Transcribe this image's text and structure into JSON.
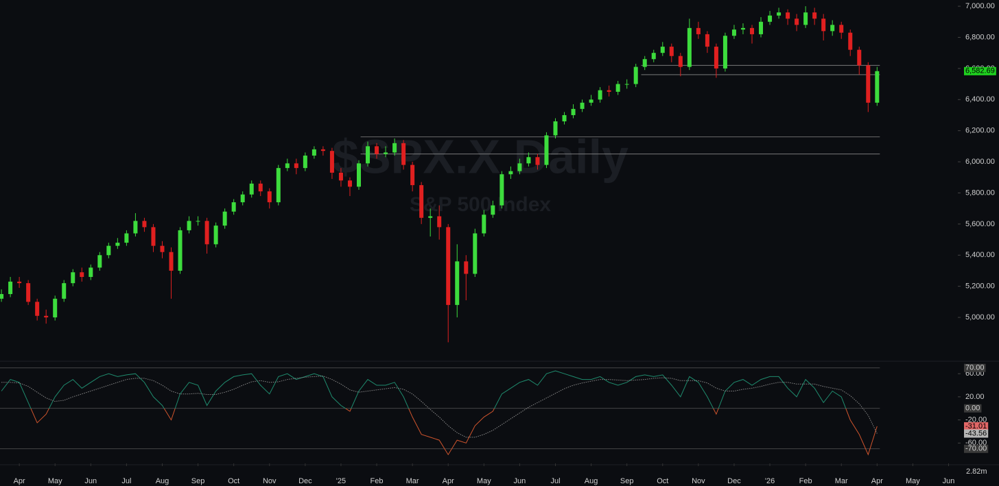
{
  "chart_data": [
    {
      "type": "candlestick",
      "title": "$SPX.X Daily",
      "subtitle": "S&P 500 Index",
      "up_color": "#3ddc3d",
      "down_color": "#e02020",
      "x": [
        -0.5,
        -0.25,
        0,
        0.25,
        0.5,
        0.75,
        1,
        1.25,
        1.5,
        1.75,
        2,
        2.25,
        2.5,
        2.75,
        3,
        3.25,
        3.5,
        3.75,
        4,
        4.25,
        4.5,
        4.75,
        5,
        5.25,
        5.5,
        5.75,
        6,
        6.25,
        6.5,
        6.75,
        7,
        7.25,
        7.5,
        7.75,
        8,
        8.25,
        8.5,
        8.75,
        9,
        9.25,
        9.5,
        9.75,
        10,
        10.25,
        10.5,
        10.75,
        11,
        11.25,
        11.5,
        11.75,
        12,
        12.25,
        12.5,
        12.75,
        13,
        13.25,
        13.5,
        13.75,
        14,
        14.25,
        14.5,
        14.75,
        15,
        15.25,
        15.5,
        15.75,
        16,
        16.25,
        16.5,
        16.75,
        17,
        17.25,
        17.5,
        17.75,
        18,
        18.25,
        18.5,
        18.75,
        19,
        19.25,
        19.5,
        19.75,
        20,
        20.25,
        20.5,
        20.75,
        21,
        21.25,
        21.5,
        21.75,
        22,
        22.25,
        22.5,
        22.75,
        23,
        23.25,
        23.5,
        23.75,
        24
      ],
      "open": [
        5120,
        5150,
        5230,
        5220,
        5100,
        5010,
        5000,
        5120,
        5220,
        5290,
        5260,
        5320,
        5400,
        5460,
        5480,
        5540,
        5620,
        5580,
        5460,
        5420,
        5300,
        5560,
        5620,
        5620,
        5470,
        5590,
        5680,
        5740,
        5790,
        5860,
        5810,
        5740,
        5960,
        5990,
        5960,
        6040,
        6080,
        6070,
        5930,
        5880,
        5840,
        5990,
        6100,
        6050,
        6060,
        6120,
        5980,
        5850,
        5640,
        5650,
        5580,
        5080,
        5360,
        5280,
        5540,
        5660,
        5720,
        5920,
        5940,
        5990,
        6030,
        5980,
        6170,
        6260,
        6300,
        6340,
        6380,
        6400,
        6460,
        6450,
        6500,
        6500,
        6610,
        6660,
        6700,
        6740,
        6680,
        6610,
        6860,
        6820,
        6740,
        6600,
        6810,
        6850,
        6860,
        6820,
        6900,
        6940,
        6960,
        6920,
        6880,
        6960,
        6920,
        6840,
        6880,
        6830,
        6720,
        6620,
        6380
      ],
      "high": [
        5180,
        5260,
        5260,
        5240,
        5120,
        5050,
        5140,
        5240,
        5310,
        5320,
        5340,
        5420,
        5480,
        5510,
        5560,
        5670,
        5640,
        5600,
        5490,
        5450,
        5580,
        5650,
        5650,
        5640,
        5610,
        5700,
        5760,
        5810,
        5880,
        5880,
        5830,
        5980,
        6020,
        6020,
        6060,
        6100,
        6100,
        6090,
        5960,
        5900,
        6010,
        6130,
        6120,
        6100,
        6150,
        6140,
        6000,
        5870,
        5700,
        5720,
        5600,
        5470,
        5400,
        5570,
        5690,
        5750,
        5940,
        5970,
        6020,
        6060,
        6050,
        6190,
        6280,
        6320,
        6370,
        6400,
        6430,
        6480,
        6490,
        6520,
        6530,
        6630,
        6680,
        6720,
        6770,
        6760,
        6700,
        6920,
        6900,
        6840,
        6760,
        6830,
        6880,
        6890,
        6880,
        6930,
        6970,
        6990,
        6980,
        6950,
        7000,
        6990,
        6950,
        6910,
        6900,
        6850,
        6740,
        6640,
        6610
      ],
      "low": [
        5100,
        5130,
        5190,
        5080,
        4980,
        4960,
        4980,
        5100,
        5200,
        5230,
        5240,
        5300,
        5380,
        5440,
        5460,
        5520,
        5550,
        5420,
        5380,
        5120,
        5280,
        5540,
        5590,
        5410,
        5450,
        5570,
        5660,
        5720,
        5770,
        5780,
        5700,
        5720,
        5940,
        5920,
        5940,
        6020,
        6040,
        5890,
        5840,
        5780,
        5820,
        5970,
        6020,
        6030,
        6040,
        5950,
        5810,
        5600,
        5520,
        5500,
        4840,
        5000,
        5110,
        5260,
        5520,
        5640,
        5700,
        5890,
        5920,
        5970,
        5950,
        5960,
        6150,
        6240,
        6280,
        6320,
        6360,
        6380,
        6420,
        6430,
        6470,
        6480,
        6590,
        6640,
        6680,
        6640,
        6550,
        6590,
        6790,
        6700,
        6540,
        6580,
        6790,
        6820,
        6760,
        6800,
        6880,
        6920,
        6880,
        6840,
        6860,
        6880,
        6780,
        6810,
        6790,
        6680,
        6560,
        6320,
        6360
      ],
      "close": [
        5150,
        5230,
        5220,
        5100,
        5010,
        5000,
        5120,
        5220,
        5290,
        5260,
        5320,
        5400,
        5460,
        5480,
        5540,
        5620,
        5580,
        5460,
        5420,
        5300,
        5560,
        5620,
        5620,
        5470,
        5590,
        5680,
        5740,
        5790,
        5860,
        5810,
        5740,
        5960,
        5990,
        5960,
        6040,
        6080,
        6070,
        5930,
        5880,
        5840,
        5990,
        6100,
        6050,
        6060,
        6120,
        5980,
        5850,
        5640,
        5650,
        5580,
        5080,
        5360,
        5280,
        5540,
        5660,
        5720,
        5920,
        5940,
        5990,
        6030,
        5980,
        6170,
        6260,
        6300,
        6340,
        6380,
        6400,
        6460,
        6450,
        6500,
        6500,
        6610,
        6660,
        6700,
        6740,
        6680,
        6610,
        6860,
        6820,
        6740,
        6600,
        6810,
        6850,
        6860,
        6820,
        6900,
        6940,
        6960,
        6920,
        6880,
        6960,
        6920,
        6840,
        6880,
        6830,
        6720,
        6620,
        6380,
        6582.69
      ],
      "last_label": "6,582.69",
      "last_color": "#1fd11f",
      "hlines": [
        {
          "y": 6620,
          "x0": 17.4
        },
        {
          "y": 6560,
          "x0": 17.4
        },
        {
          "y": 6160,
          "x0": 9.55
        },
        {
          "y": 6050,
          "x0": 9.55
        }
      ],
      "xlim": [
        -0.54,
        26.24
      ],
      "ylim": [
        4727,
        7040
      ],
      "xticks": [
        {
          "value": 0,
          "label": "Apr"
        },
        {
          "value": 1,
          "label": "May"
        },
        {
          "value": 2,
          "label": "Jun"
        },
        {
          "value": 3,
          "label": "Jul"
        },
        {
          "value": 4,
          "label": "Aug"
        },
        {
          "value": 5,
          "label": "Sep"
        },
        {
          "value": 6,
          "label": "Oct"
        },
        {
          "value": 7,
          "label": "Nov"
        },
        {
          "value": 8,
          "label": "Dec"
        },
        {
          "value": 9,
          "label": "'25"
        },
        {
          "value": 10,
          "label": "Feb"
        },
        {
          "value": 11,
          "label": "Mar"
        },
        {
          "value": 12,
          "label": "Apr"
        },
        {
          "value": 13,
          "label": "May"
        },
        {
          "value": 14,
          "label": "Jun"
        },
        {
          "value": 15,
          "label": "Jul"
        },
        {
          "value": 16,
          "label": "Aug"
        },
        {
          "value": 17,
          "label": "Sep"
        },
        {
          "value": 18,
          "label": "Oct"
        },
        {
          "value": 19,
          "label": "Nov"
        },
        {
          "value": 20,
          "label": "Dec"
        },
        {
          "value": 21,
          "label": "'26"
        },
        {
          "value": 22,
          "label": "Feb"
        },
        {
          "value": 23,
          "label": "Mar"
        },
        {
          "value": 24,
          "label": "Apr"
        },
        {
          "value": 25,
          "label": "May"
        },
        {
          "value": 26,
          "label": "Jun"
        }
      ],
      "yticks": [
        {
          "value": 5000,
          "label": "5,000.00"
        },
        {
          "value": 5200,
          "label": "5,200.00"
        },
        {
          "value": 5400,
          "label": "5,400.00"
        },
        {
          "value": 5600,
          "label": "5,600.00"
        },
        {
          "value": 5800,
          "label": "5,800.00"
        },
        {
          "value": 6000,
          "label": "6,000.00"
        },
        {
          "value": 6200,
          "label": "6,200.00"
        },
        {
          "value": 6400,
          "label": "6,400.00"
        },
        {
          "value": 6600,
          "label": "6,600.00"
        },
        {
          "value": 6800,
          "label": "6,800.00"
        },
        {
          "value": 7000,
          "label": "7,000.00"
        }
      ],
      "volume_scale": "2.82m"
    },
    {
      "type": "line",
      "ylim": [
        -94,
        78
      ],
      "yticks": [
        {
          "value": 60,
          "label": "60.00"
        },
        {
          "value": 20,
          "label": "20.00"
        },
        {
          "value": -20,
          "label": "-20.00"
        },
        {
          "value": -60,
          "label": "-60.00"
        }
      ],
      "levels": [
        {
          "value": 70,
          "label": "70.00"
        },
        {
          "value": 0,
          "label": "0.00"
        },
        {
          "value": -70,
          "label": "-70.00"
        }
      ],
      "series": [
        {
          "color": "#1e8c6e",
          "neg_color": "#d0542c",
          "last_label": "-31.01",
          "last_color": "#e06666",
          "values": [
            30,
            50,
            45,
            10,
            -25,
            -10,
            20,
            40,
            50,
            35,
            45,
            55,
            60,
            55,
            58,
            60,
            45,
            20,
            5,
            -20,
            25,
            45,
            40,
            5,
            30,
            45,
            55,
            58,
            60,
            40,
            25,
            55,
            60,
            50,
            55,
            60,
            55,
            20,
            5,
            -5,
            30,
            50,
            40,
            40,
            45,
            20,
            -15,
            -45,
            -50,
            -55,
            -80,
            -55,
            -60,
            -30,
            -15,
            -5,
            25,
            35,
            45,
            50,
            40,
            60,
            65,
            60,
            55,
            50,
            50,
            55,
            45,
            40,
            45,
            55,
            58,
            55,
            58,
            40,
            20,
            55,
            45,
            20,
            -10,
            30,
            45,
            50,
            40,
            50,
            55,
            55,
            35,
            20,
            50,
            35,
            10,
            30,
            20,
            -20,
            -45,
            -80,
            -31.01
          ]
        },
        {
          "color": "#8a8a8a",
          "dashed": true,
          "last_label": "-43.56",
          "last_color": "#b5b5b5",
          "values": [
            45,
            45,
            44,
            38,
            28,
            18,
            12,
            14,
            20,
            25,
            30,
            35,
            40,
            45,
            50,
            52,
            52,
            48,
            40,
            30,
            25,
            25,
            26,
            24,
            24,
            28,
            33,
            40,
            46,
            48,
            45,
            46,
            50,
            52,
            54,
            55,
            56,
            50,
            42,
            32,
            28,
            30,
            32,
            34,
            36,
            33,
            25,
            12,
            -2,
            -15,
            -30,
            -42,
            -50,
            -50,
            -45,
            -38,
            -28,
            -18,
            -8,
            2,
            10,
            18,
            26,
            34,
            40,
            44,
            47,
            50,
            50,
            49,
            48,
            49,
            50,
            52,
            53,
            52,
            48,
            48,
            48,
            44,
            35,
            30,
            30,
            33,
            35,
            38,
            42,
            45,
            45,
            42,
            42,
            42,
            38,
            35,
            32,
            22,
            8,
            -12,
            -43.56
          ]
        }
      ]
    }
  ]
}
